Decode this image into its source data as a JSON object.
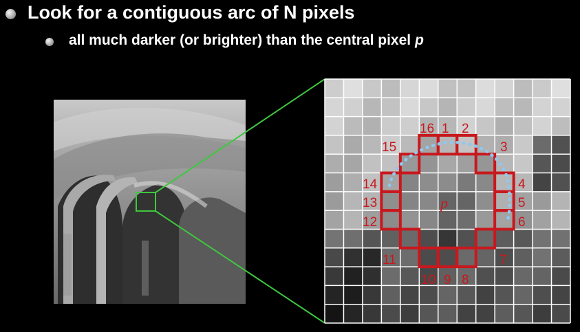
{
  "bullets": [
    {
      "text": "Look for a contiguous arc of N pixels"
    },
    {
      "text": "all much darker (or brighter) than the central pixel",
      "var": "p"
    }
  ],
  "colors": {
    "ring": "#c8181d",
    "arc": "#8fc8f0",
    "zoom": "#3ec83e",
    "grid": "#ffffff"
  },
  "center_label": "p",
  "ring_labels": [
    "1",
    "2",
    "3",
    "4",
    "5",
    "6",
    "7",
    "8",
    "9",
    "10",
    "11",
    "12",
    "13",
    "14",
    "15",
    "16"
  ]
}
